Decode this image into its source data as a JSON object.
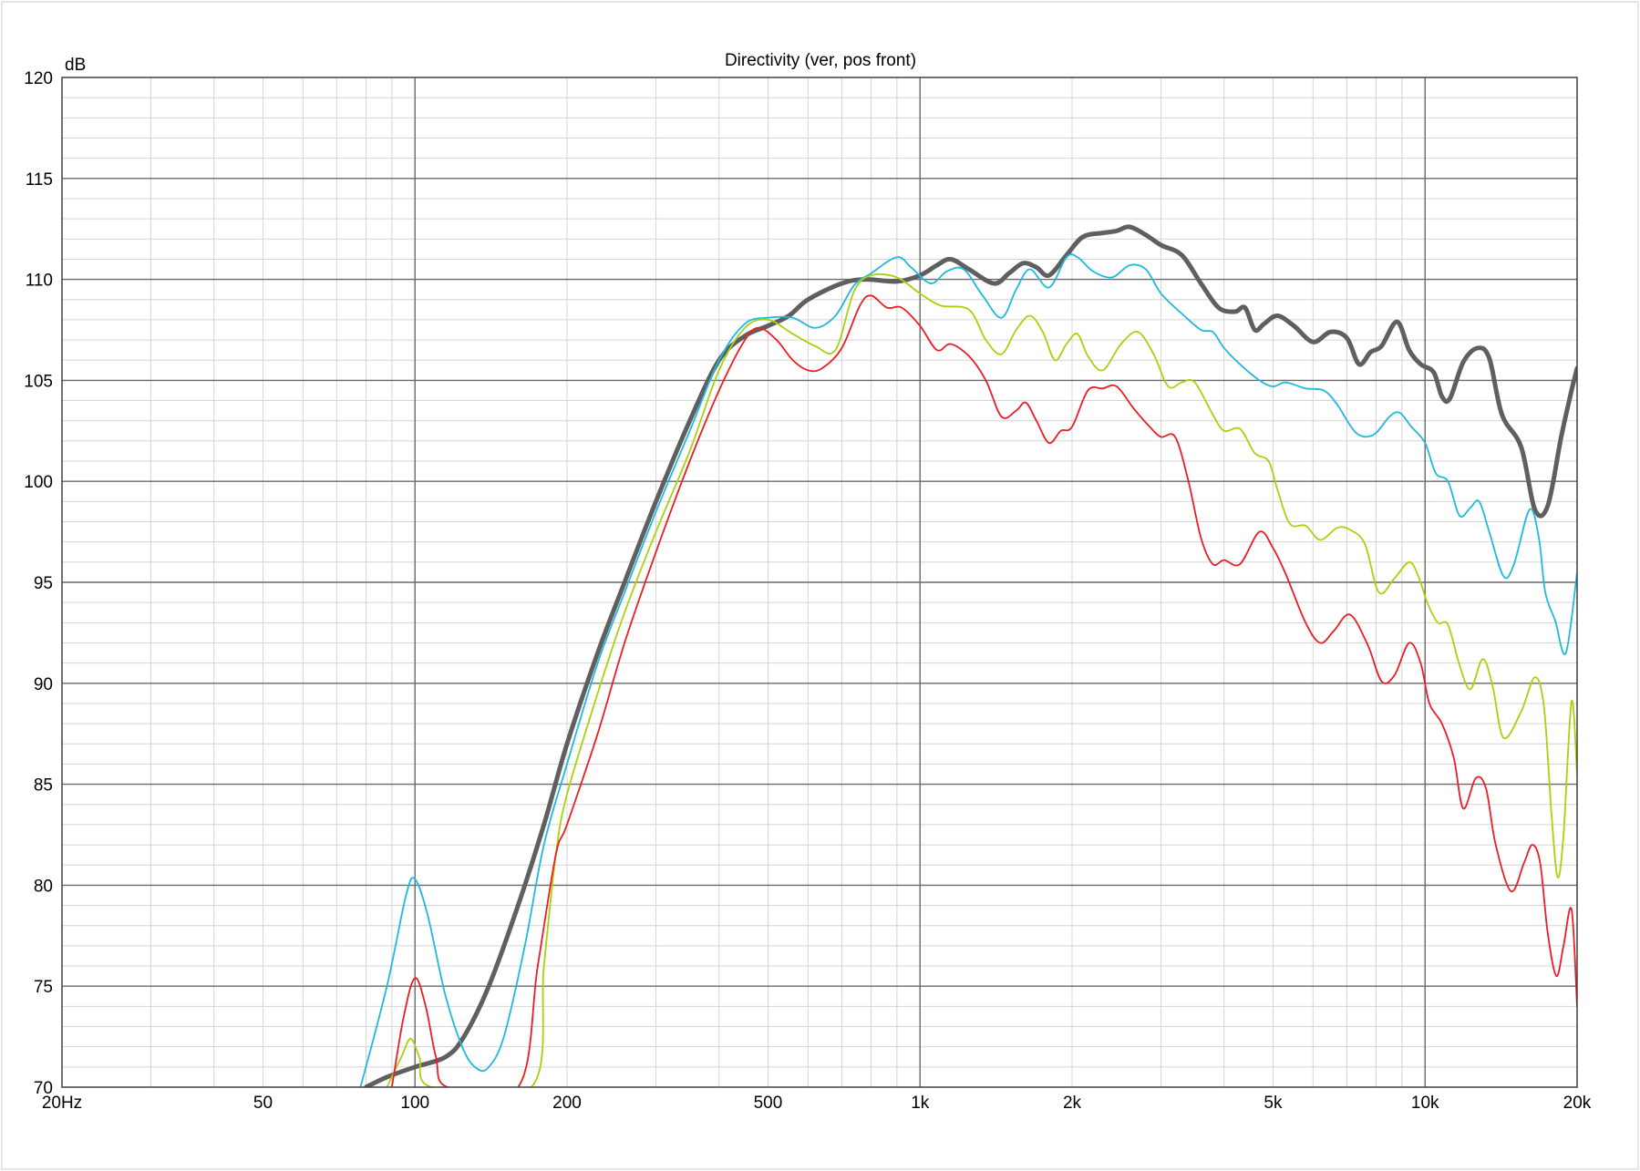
{
  "chart_data": {
    "type": "line",
    "title": "Directivity (ver, pos front)",
    "ylabel": "dB",
    "xlabel": "",
    "x_scale": "log",
    "xlim": [
      20,
      20000
    ],
    "ylim": [
      70,
      120
    ],
    "grid": true,
    "legend": "none",
    "x_ticks": [
      {
        "value": 20,
        "label": "20Hz"
      },
      {
        "value": 50,
        "label": "50"
      },
      {
        "value": 100,
        "label": "100"
      },
      {
        "value": 200,
        "label": "200"
      },
      {
        "value": 500,
        "label": "500"
      },
      {
        "value": 1000,
        "label": "1k"
      },
      {
        "value": 2000,
        "label": "2k"
      },
      {
        "value": 5000,
        "label": "5k"
      },
      {
        "value": 10000,
        "label": "10k"
      },
      {
        "value": 20000,
        "label": "20k"
      }
    ],
    "y_ticks": [
      {
        "value": 120,
        "label": "120"
      },
      {
        "value": 115,
        "label": "115"
      },
      {
        "value": 110,
        "label": "110"
      },
      {
        "value": 105,
        "label": "105"
      },
      {
        "value": 100,
        "label": "100"
      },
      {
        "value": 95,
        "label": "95"
      },
      {
        "value": 90,
        "label": "90"
      },
      {
        "value": 85,
        "label": "85"
      },
      {
        "value": 80,
        "label": "80"
      },
      {
        "value": 75,
        "label": "75"
      },
      {
        "value": 70,
        "label": "70"
      }
    ],
    "series": [
      {
        "color": "#5f5f5f",
        "points": [
          [
            80,
            70
          ],
          [
            88,
            70.5
          ],
          [
            100,
            71
          ],
          [
            115,
            71.5
          ],
          [
            125,
            72.5
          ],
          [
            140,
            75
          ],
          [
            160,
            79
          ],
          [
            180,
            83
          ],
          [
            200,
            87
          ],
          [
            230,
            91.5
          ],
          [
            260,
            95
          ],
          [
            300,
            99
          ],
          [
            350,
            103
          ],
          [
            400,
            106
          ],
          [
            450,
            107.2
          ],
          [
            500,
            107.7
          ],
          [
            550,
            108.2
          ],
          [
            600,
            109
          ],
          [
            700,
            109.8
          ],
          [
            780,
            110
          ],
          [
            900,
            109.9
          ],
          [
            1000,
            110.2
          ],
          [
            1080,
            110.7
          ],
          [
            1150,
            111
          ],
          [
            1250,
            110.5
          ],
          [
            1400,
            109.8
          ],
          [
            1500,
            110.3
          ],
          [
            1600,
            110.8
          ],
          [
            1700,
            110.6
          ],
          [
            1800,
            110.2
          ],
          [
            1950,
            111.2
          ],
          [
            2100,
            112.1
          ],
          [
            2300,
            112.3
          ],
          [
            2450,
            112.4
          ],
          [
            2600,
            112.6
          ],
          [
            2800,
            112.2
          ],
          [
            3000,
            111.7
          ],
          [
            3300,
            111.2
          ],
          [
            3600,
            109.8
          ],
          [
            3900,
            108.6
          ],
          [
            4200,
            108.4
          ],
          [
            4400,
            108.6
          ],
          [
            4600,
            107.5
          ],
          [
            4800,
            107.8
          ],
          [
            5100,
            108.2
          ],
          [
            5500,
            107.7
          ],
          [
            6000,
            106.9
          ],
          [
            6500,
            107.4
          ],
          [
            7000,
            107.1
          ],
          [
            7400,
            105.8
          ],
          [
            7800,
            106.4
          ],
          [
            8200,
            106.7
          ],
          [
            8800,
            107.9
          ],
          [
            9300,
            106.5
          ],
          [
            9800,
            105.8
          ],
          [
            10400,
            105.4
          ],
          [
            10800,
            104.2
          ],
          [
            11200,
            104.1
          ],
          [
            11900,
            105.9
          ],
          [
            12700,
            106.6
          ],
          [
            13400,
            106.1
          ],
          [
            14200,
            103.3
          ],
          [
            15500,
            101.7
          ],
          [
            16500,
            98.6
          ],
          [
            17500,
            98.8
          ],
          [
            18600,
            102.2
          ],
          [
            19500,
            104.5
          ],
          [
            20000,
            105.6
          ]
        ]
      },
      {
        "color": "#1fb9e0",
        "points": [
          [
            78,
            70
          ],
          [
            88,
            75
          ],
          [
            96,
            79.5
          ],
          [
            100,
            80.3
          ],
          [
            106,
            78.5
          ],
          [
            115,
            74.5
          ],
          [
            125,
            71.8
          ],
          [
            133,
            70.9
          ],
          [
            140,
            71
          ],
          [
            150,
            72.5
          ],
          [
            165,
            77
          ],
          [
            180,
            82
          ],
          [
            200,
            86
          ],
          [
            230,
            91
          ],
          [
            260,
            94.5
          ],
          [
            300,
            98.5
          ],
          [
            350,
            102.5
          ],
          [
            400,
            106
          ],
          [
            450,
            107.8
          ],
          [
            500,
            108.1
          ],
          [
            560,
            108.1
          ],
          [
            620,
            107.6
          ],
          [
            680,
            108.2
          ],
          [
            740,
            109.7
          ],
          [
            800,
            110.3
          ],
          [
            900,
            111.1
          ],
          [
            960,
            110.6
          ],
          [
            1050,
            109.8
          ],
          [
            1130,
            110.4
          ],
          [
            1220,
            110.5
          ],
          [
            1330,
            109.2
          ],
          [
            1450,
            108.1
          ],
          [
            1550,
            109.5
          ],
          [
            1650,
            110.5
          ],
          [
            1800,
            109.6
          ],
          [
            1950,
            111.1
          ],
          [
            2050,
            111.1
          ],
          [
            2200,
            110.4
          ],
          [
            2400,
            110.1
          ],
          [
            2600,
            110.7
          ],
          [
            2800,
            110.5
          ],
          [
            3000,
            109.3
          ],
          [
            3300,
            108.3
          ],
          [
            3600,
            107.5
          ],
          [
            3800,
            107.4
          ],
          [
            4000,
            106.6
          ],
          [
            4300,
            105.8
          ],
          [
            4700,
            105
          ],
          [
            5000,
            104.7
          ],
          [
            5300,
            104.9
          ],
          [
            5800,
            104.6
          ],
          [
            6300,
            104.5
          ],
          [
            6700,
            103.8
          ],
          [
            7300,
            102.4
          ],
          [
            7900,
            102.3
          ],
          [
            8500,
            103.2
          ],
          [
            8900,
            103.4
          ],
          [
            9400,
            102.7
          ],
          [
            10000,
            101.9
          ],
          [
            10500,
            100.4
          ],
          [
            11100,
            100
          ],
          [
            11700,
            98.3
          ],
          [
            12300,
            98.7
          ],
          [
            12800,
            99
          ],
          [
            13400,
            97.5
          ],
          [
            14300,
            95.3
          ],
          [
            15000,
            95.9
          ],
          [
            16100,
            98.6
          ],
          [
            16800,
            97.2
          ],
          [
            17300,
            94.5
          ],
          [
            18100,
            93.1
          ],
          [
            19000,
            91.5
          ],
          [
            20000,
            95.5
          ]
        ]
      },
      {
        "color": "#a8d20c",
        "points": [
          [
            88,
            70
          ],
          [
            94,
            71.5
          ],
          [
            98,
            72.4
          ],
          [
            102,
            71.5
          ],
          [
            108,
            70
          ],
          [
            170,
            70
          ],
          [
            180,
            76
          ],
          [
            190,
            81.5
          ],
          [
            200,
            84.5
          ],
          [
            230,
            89.5
          ],
          [
            260,
            93.5
          ],
          [
            300,
            97.5
          ],
          [
            350,
            101.5
          ],
          [
            400,
            105.5
          ],
          [
            450,
            107.6
          ],
          [
            500,
            108
          ],
          [
            560,
            107.3
          ],
          [
            620,
            106.7
          ],
          [
            680,
            106.5
          ],
          [
            740,
            109.4
          ],
          [
            800,
            110.2
          ],
          [
            900,
            110.1
          ],
          [
            1000,
            109.3
          ],
          [
            1100,
            108.7
          ],
          [
            1250,
            108.5
          ],
          [
            1350,
            107
          ],
          [
            1450,
            106.3
          ],
          [
            1550,
            107.5
          ],
          [
            1650,
            108.2
          ],
          [
            1750,
            107.4
          ],
          [
            1850,
            106
          ],
          [
            1950,
            106.8
          ],
          [
            2050,
            107.3
          ],
          [
            2150,
            106.2
          ],
          [
            2300,
            105.5
          ],
          [
            2500,
            106.8
          ],
          [
            2700,
            107.4
          ],
          [
            2900,
            106.3
          ],
          [
            3100,
            104.7
          ],
          [
            3300,
            104.9
          ],
          [
            3500,
            104.9
          ],
          [
            3800,
            103.3
          ],
          [
            4000,
            102.5
          ],
          [
            4300,
            102.6
          ],
          [
            4600,
            101.4
          ],
          [
            4900,
            101
          ],
          [
            5100,
            99.6
          ],
          [
            5400,
            97.9
          ],
          [
            5800,
            97.8
          ],
          [
            6200,
            97.1
          ],
          [
            6700,
            97.7
          ],
          [
            7100,
            97.6
          ],
          [
            7600,
            96.9
          ],
          [
            8100,
            94.5
          ],
          [
            8700,
            95.2
          ],
          [
            9300,
            96
          ],
          [
            9700,
            95.3
          ],
          [
            10100,
            94
          ],
          [
            10600,
            93
          ],
          [
            11100,
            92.9
          ],
          [
            11700,
            90.9
          ],
          [
            12300,
            89.7
          ],
          [
            13000,
            91.2
          ],
          [
            13600,
            89.9
          ],
          [
            14300,
            87.3
          ],
          [
            15500,
            88.6
          ],
          [
            16500,
            90.3
          ],
          [
            17200,
            88.8
          ],
          [
            17800,
            83.5
          ],
          [
            18300,
            80.4
          ],
          [
            18800,
            82.5
          ],
          [
            19500,
            89.1
          ],
          [
            20000,
            85.5
          ]
        ]
      },
      {
        "color": "#ee1c24",
        "points": [
          [
            90,
            70
          ],
          [
            95,
            73.5
          ],
          [
            100,
            75.4
          ],
          [
            105,
            74
          ],
          [
            110,
            71.5
          ],
          [
            116,
            70
          ],
          [
            160,
            70
          ],
          [
            175,
            76
          ],
          [
            190,
            81.5
          ],
          [
            200,
            83
          ],
          [
            230,
            87.5
          ],
          [
            260,
            92
          ],
          [
            300,
            96.5
          ],
          [
            350,
            101
          ],
          [
            400,
            104.5
          ],
          [
            450,
            107
          ],
          [
            480,
            107.6
          ],
          [
            520,
            107
          ],
          [
            560,
            106
          ],
          [
            600,
            105.5
          ],
          [
            640,
            105.6
          ],
          [
            700,
            106.6
          ],
          [
            760,
            108.7
          ],
          [
            800,
            109.2
          ],
          [
            860,
            108.6
          ],
          [
            920,
            108.6
          ],
          [
            1000,
            107.7
          ],
          [
            1080,
            106.5
          ],
          [
            1150,
            106.8
          ],
          [
            1250,
            106.2
          ],
          [
            1350,
            105
          ],
          [
            1450,
            103.2
          ],
          [
            1550,
            103.5
          ],
          [
            1620,
            103.9
          ],
          [
            1700,
            103
          ],
          [
            1800,
            101.9
          ],
          [
            1900,
            102.5
          ],
          [
            2000,
            102.7
          ],
          [
            2150,
            104.5
          ],
          [
            2300,
            104.6
          ],
          [
            2450,
            104.7
          ],
          [
            2650,
            103.6
          ],
          [
            2850,
            102.7
          ],
          [
            3000,
            102.2
          ],
          [
            3200,
            102.2
          ],
          [
            3400,
            100
          ],
          [
            3600,
            97.2
          ],
          [
            3800,
            95.9
          ],
          [
            4000,
            96.1
          ],
          [
            4300,
            95.9
          ],
          [
            4700,
            97.5
          ],
          [
            5000,
            96.7
          ],
          [
            5300,
            95.4
          ],
          [
            5800,
            93
          ],
          [
            6200,
            92
          ],
          [
            6600,
            92.6
          ],
          [
            7100,
            93.4
          ],
          [
            7700,
            91.9
          ],
          [
            8200,
            90.1
          ],
          [
            8700,
            90.4
          ],
          [
            9300,
            92
          ],
          [
            9800,
            91
          ],
          [
            10200,
            89
          ],
          [
            10800,
            88
          ],
          [
            11400,
            86.3
          ],
          [
            11900,
            83.8
          ],
          [
            12600,
            85.3
          ],
          [
            13200,
            84.8
          ],
          [
            13800,
            82
          ],
          [
            14800,
            79.7
          ],
          [
            15700,
            81.1
          ],
          [
            16300,
            82
          ],
          [
            16900,
            81.1
          ],
          [
            17500,
            77.6
          ],
          [
            18200,
            75.5
          ],
          [
            18800,
            77
          ],
          [
            19500,
            78.8
          ],
          [
            20000,
            74
          ]
        ]
      }
    ]
  }
}
